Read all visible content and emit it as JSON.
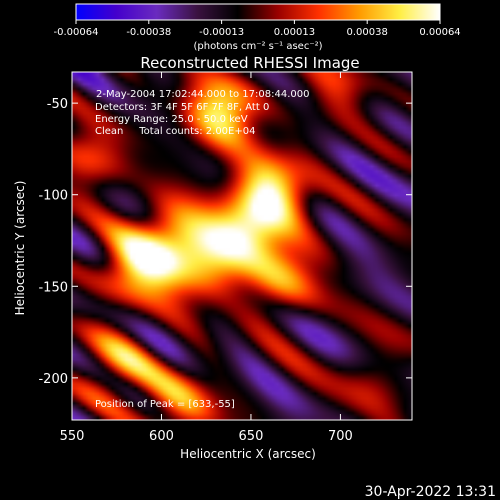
{
  "chart_data": {
    "type": "heatmap",
    "title": "Reconstructed RHESSI Image",
    "xlabel": "Heliocentric X (arcsec)",
    "ylabel": "Heliocentric Y (arcsec)",
    "xlim": [
      550,
      740
    ],
    "ylim": [
      -223,
      -33
    ],
    "x_ticks": [
      550,
      600,
      650,
      700
    ],
    "y_ticks": [
      -50,
      -100,
      -150,
      -200
    ],
    "colorbar": {
      "min": -0.00064,
      "max": 0.00064,
      "ticks": [
        "-0.00064",
        "-0.00038",
        "-0.00013",
        "0.00013",
        "0.00038",
        "0.00064"
      ],
      "unit_label": "(photons cm⁻² s⁻¹ asec⁻²)",
      "stops": [
        "#0000ff",
        "#4400cc",
        "#6a2bbf",
        "#3a1240",
        "#000000",
        "#9a0000",
        "#ff3000",
        "#ff9a00",
        "#ffee44",
        "#ffffff"
      ]
    },
    "annotations": [
      "2-May-2004 17:02:44.000 to 17:08:44.000",
      "Detectors: 3F 4F 5F 6F 7F 8F, Att 0",
      "Energy Range: 25.0 - 50.0 keV",
      "Clean     Total counts: 2.00E+04"
    ],
    "peak_label": "Position of Peak = [633,-55]",
    "peak_position": [
      633,
      -55
    ],
    "sources": [
      {
        "x": 633,
        "y": -55,
        "amp": 1.0
      },
      {
        "x": 662,
        "y": -98,
        "amp": 0.95
      },
      {
        "x": 648,
        "y": -118,
        "amp": 0.85
      },
      {
        "x": 605,
        "y": -125,
        "amp": 0.8
      },
      {
        "x": 585,
        "y": -140,
        "amp": 0.85
      },
      {
        "x": 625,
        "y": -138,
        "amp": 0.75
      },
      {
        "x": 668,
        "y": -145,
        "amp": 0.7
      },
      {
        "x": 560,
        "y": -80,
        "amp": 0.55
      },
      {
        "x": 575,
        "y": -195,
        "amp": 0.6
      },
      {
        "x": 610,
        "y": -215,
        "amp": 0.65
      },
      {
        "x": 700,
        "y": -40,
        "amp": 0.4
      },
      {
        "x": 720,
        "y": -200,
        "amp": 0.35
      }
    ]
  },
  "footer": {
    "timestamp": "30-Apr-2022 13:31"
  }
}
